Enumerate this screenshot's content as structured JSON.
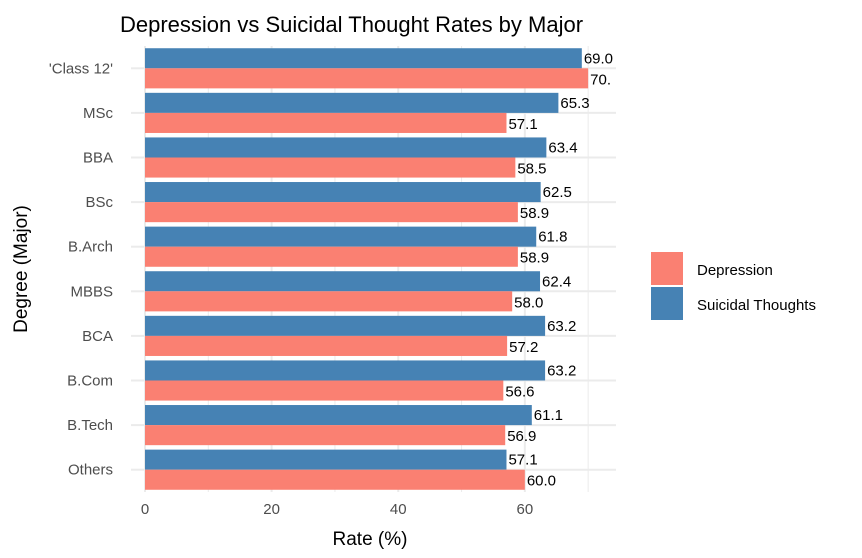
{
  "chart_data": {
    "type": "bar",
    "orientation": "horizontal",
    "title": "Depression vs Suicidal Thought Rates by Major",
    "xlabel": "Rate (%)",
    "ylabel": "Degree (Major)",
    "xlim": [
      0,
      74.4
    ],
    "xticks": [
      0,
      20,
      40,
      60
    ],
    "grid": true,
    "legend_position": "right",
    "categories": [
      "'Class 12'",
      "MSc",
      "BBA",
      "BSc",
      "B.Arch",
      "MBBS",
      "BCA",
      "B.Com",
      "B.Tech",
      "Others"
    ],
    "series": [
      {
        "name": "Depression",
        "color": "#fa8072",
        "values": [
          70.0,
          57.1,
          58.5,
          58.9,
          58.9,
          58.0,
          57.2,
          56.6,
          56.9,
          60.0
        ],
        "labels": [
          "70.",
          "57.1",
          "58.5",
          "58.9",
          "58.9",
          "58.0",
          "57.2",
          "56.6",
          "56.9",
          "60.0"
        ]
      },
      {
        "name": "Suicidal Thoughts",
        "color": "#4682b4",
        "values": [
          69.0,
          65.3,
          63.4,
          62.5,
          61.8,
          62.4,
          63.2,
          63.2,
          61.1,
          57.1
        ],
        "labels": [
          "69.0",
          "65.3",
          "63.4",
          "62.5",
          "61.8",
          "62.4",
          "63.2",
          "63.2",
          "61.1",
          "57.1"
        ]
      }
    ]
  }
}
